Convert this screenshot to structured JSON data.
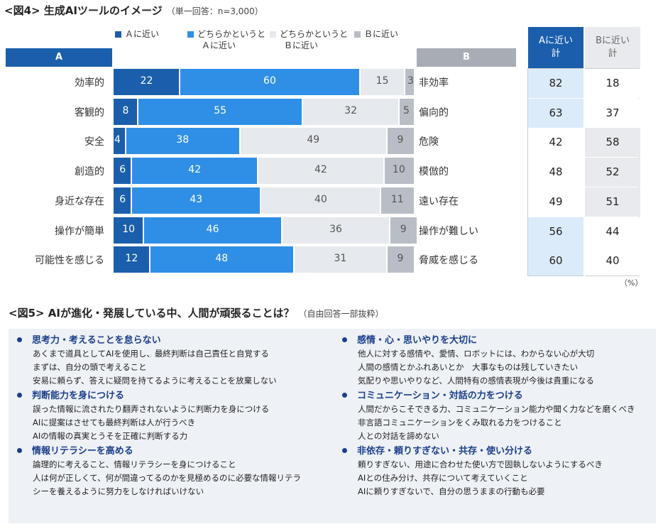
{
  "figure4": {
    "title": "<図4> 生成AIツールのイメージ",
    "note": "（単一回答：n=3,000）",
    "legend": [
      {
        "label1": "Ａに近い",
        "label2": "",
        "color": "#1b5eab"
      },
      {
        "label1": "どちらかというと",
        "label2": "Ａに近い",
        "color": "#2f8fe6"
      },
      {
        "label1": "どちらかというと",
        "label2": "Ｂに近い",
        "color": "#e6e9ed"
      },
      {
        "label1": "Ｂに近い",
        "label2": "",
        "color": "#b9bec6"
      }
    ],
    "header_a": "A",
    "header_b": "B",
    "totals_header_a": [
      "Aに近い",
      "計"
    ],
    "totals_header_b": [
      "Bに近い",
      "計"
    ],
    "unit": "（%）"
  },
  "chart_data": {
    "type": "bar",
    "orientation": "horizontal-stacked-100",
    "title": "<図4> 生成AIツールのイメージ",
    "subtitle": "（単一回答：n=3,000）",
    "categories_a": [
      "効率的",
      "客観的",
      "安全",
      "創造的",
      "身近な存在",
      "操作が簡単",
      "可能性を感じる"
    ],
    "categories_b": [
      "非効率",
      "偏向的",
      "危険",
      "模倣的",
      "遠い存在",
      "操作が難しい",
      "脅威を感じる"
    ],
    "series": [
      {
        "name": "Ａに近い",
        "color": "#1b5eab",
        "label_color": "#ffffff",
        "values": [
          22,
          8,
          4,
          6,
          6,
          10,
          12
        ]
      },
      {
        "name": "どちらかというとＡに近い",
        "color": "#2f8fe6",
        "label_color": "#ffffff",
        "values": [
          60,
          55,
          38,
          42,
          43,
          46,
          48
        ]
      },
      {
        "name": "どちらかというとＢに近い",
        "color": "#e6e9ed",
        "label_color": "#555555",
        "values": [
          15,
          32,
          49,
          42,
          40,
          36,
          31
        ]
      },
      {
        "name": "Ｂに近い",
        "color": "#b9bec6",
        "label_color": "#555555",
        "values": [
          3,
          5,
          9,
          10,
          11,
          9,
          9
        ]
      }
    ],
    "totals_a": [
      82,
      63,
      42,
      48,
      49,
      56,
      60
    ],
    "totals_b": [
      18,
      37,
      58,
      52,
      51,
      44,
      40
    ],
    "totals_a_highlight": [
      true,
      true,
      false,
      false,
      false,
      true,
      true
    ],
    "totals_b_highlight": [
      false,
      false,
      true,
      true,
      true,
      false,
      false
    ],
    "unit": "%"
  },
  "figure5": {
    "title": "<図5> AIが進化・発展している中、人間が頑張ることは？",
    "note": "（自由回答一部抜粋）",
    "left": [
      {
        "heading": "思考力・考えることを怠らない",
        "lines": [
          "あくまで道具としてAIを使用し、最終判断は自己責任と自覚する",
          "まずは、自分の頭で考えること",
          "安易に頼らず、答えに疑問を持てるように考えることを放棄しない"
        ]
      },
      {
        "heading": "判断能力を身につける",
        "lines": [
          "誤った情報に流されたり翻弄されないように判断力を身につける",
          "AIに提案はさせても最終判断は人が行うべき",
          "AIの情報の真実とうそを正確に判断する力"
        ]
      },
      {
        "heading": "情報リテラシーを高める",
        "lines": [
          "論理的に考えること、情報リテラシーを身につけること",
          "人は何が正しくて、何が間違ってるのかを見極めるのに必要な情報リテラ",
          "シーを養えるように努力をしなければいけない"
        ]
      }
    ],
    "right": [
      {
        "heading": "感情・心・思いやりを大切に",
        "lines": [
          "他人に対する感情や、愛情、ロボットには、わからない心が大切",
          "人間の感情とかふれあいとか　大事なものは残していきたい",
          "気配りや思いやりなど、人間特有の感情表現が今後は貴重になる"
        ]
      },
      {
        "heading": "コミュニケーション・対話の力をつける",
        "lines": [
          "人間だからこそできる力、コミュニケーション能力や聞く力などを磨くべき",
          "非言語コミュニケーションをくみ取れる力をつけること",
          "人との対話を諦めない"
        ]
      },
      {
        "heading": "非依存・頼りすぎない・共存・使い分ける",
        "lines": [
          "頼りすぎない、用途に合わせた使い方で固執しないようにするべき",
          "AIとの住み分け、共存について考えていくこと",
          "AIに頼りすぎないで、自分の思うままの行動も必要"
        ]
      }
    ]
  }
}
